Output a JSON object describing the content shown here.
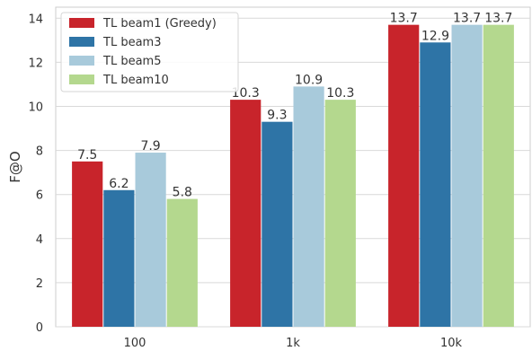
{
  "chart_data": {
    "type": "bar",
    "categories": [
      "100",
      "1k",
      "10k"
    ],
    "series": [
      {
        "name": "TL beam1 (Greedy)",
        "values": [
          7.5,
          10.3,
          13.7
        ],
        "color": "#c8242b"
      },
      {
        "name": "TL beam3",
        "values": [
          6.2,
          9.3,
          12.9
        ],
        "color": "#2e74a6"
      },
      {
        "name": "TL beam5",
        "values": [
          7.9,
          10.9,
          13.7
        ],
        "color": "#a8cadb"
      },
      {
        "name": "TL beam10",
        "values": [
          5.8,
          10.3,
          13.7
        ],
        "color": "#b4d88e"
      }
    ],
    "xlabel": "",
    "ylabel": "F@O",
    "ylim": [
      0,
      14.5
    ],
    "yticks": [
      "0",
      "2",
      "4",
      "6",
      "8",
      "10",
      "12",
      "14"
    ],
    "grid": true,
    "legend_position": "top-left"
  }
}
